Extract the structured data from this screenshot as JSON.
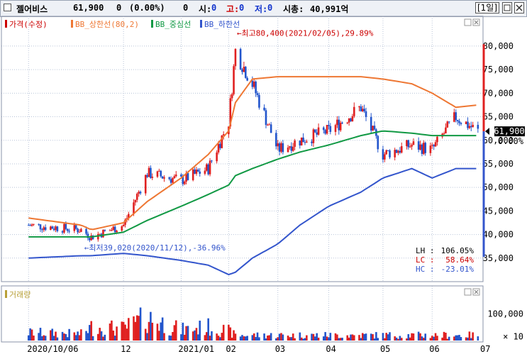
{
  "header": {
    "name": "젤어비스",
    "price": "61,900",
    "change": "0",
    "change_pct": "(0.00%)",
    "volume": "0",
    "open_label": "시:",
    "open_value": "0",
    "high_label": "고:",
    "high_value": "0",
    "low_label": "저:",
    "low_value": "0",
    "cap_label": "시총:",
    "cap_value": "40,991억",
    "period": "[1일]"
  },
  "chart_data": [
    {
      "type": "line",
      "title": "",
      "xlabel": "",
      "ylabel": "",
      "legend": [
        "가격(수정)",
        "BB_상한선(80,2)",
        "BB_중심선",
        "BB_하한선"
      ],
      "legend_colors": [
        "#cc0000",
        "#ee7733",
        "#119944",
        "#3355cc"
      ],
      "candle_colors": {
        "up": "#e02020",
        "down": "#2255cc"
      },
      "ylim": [
        30000,
        83000
      ],
      "yticks": [
        "80,000",
        "75,000",
        "70,000",
        "65,000",
        "60,000",
        "55,000",
        "50,000",
        "45,000",
        "40,000",
        "35,000"
      ],
      "ytick_values": [
        80000,
        75000,
        70000,
        65000,
        60000,
        55000,
        50000,
        45000,
        40000,
        35000
      ],
      "xticks": [
        "2020/10/06",
        "12",
        "2021/01",
        "02",
        "03",
        "04",
        "05",
        "06",
        "07"
      ],
      "x": [
        "2020-10-06",
        "2020-11-06",
        "2020-11-12",
        "2020-12-01",
        "2020-12-15",
        "2021-01-04",
        "2021-01-20",
        "2021-02-01",
        "2021-02-05",
        "2021-02-15",
        "2021-03-02",
        "2021-03-15",
        "2021-04-01",
        "2021-04-20",
        "2021-05-03",
        "2021-05-20",
        "2021-06-01",
        "2021-06-15",
        "2021-06-28"
      ],
      "series": [
        {
          "name": "가격(수정)",
          "values": [
            42000,
            41000,
            39500,
            42000,
            53000,
            51500,
            54000,
            64000,
            79000,
            72000,
            58000,
            60000,
            62000,
            67000,
            57000,
            59000,
            58000,
            65000,
            61900
          ]
        },
        {
          "name": "BB_상한선(80,2)",
          "values": [
            43500,
            42000,
            41000,
            42500,
            47000,
            52000,
            57000,
            62000,
            68000,
            73000,
            73500,
            73500,
            73500,
            73500,
            73000,
            72000,
            70000,
            67000,
            67500
          ]
        },
        {
          "name": "BB_중심선",
          "values": [
            39500,
            39500,
            39500,
            40500,
            43000,
            46000,
            48500,
            50500,
            52500,
            54000,
            56000,
            57500,
            59000,
            61000,
            62000,
            61500,
            61000,
            61000,
            61000
          ]
        },
        {
          "name": "BB_하한선",
          "values": [
            35000,
            35500,
            35500,
            36000,
            35500,
            34500,
            33500,
            31500,
            32000,
            35000,
            38000,
            42000,
            46000,
            49000,
            52000,
            54000,
            52000,
            54000,
            54000
          ]
        }
      ],
      "annotations": [
        {
          "text": "←최고80,400(2021/02/05),29.89%",
          "x": "2021-02-05",
          "y": 80400,
          "color": "#cc0000"
        },
        {
          "text": "←최저39,020(2020/11/12),-36.96%",
          "x": "2020-11-12",
          "y": 39020,
          "color": "#3355cc"
        }
      ],
      "current_price_label": "61,900",
      "current_price_value": 61900,
      "current_pct_label": "0.00%",
      "stats": [
        {
          "label": "LH :",
          "value": "106.05%",
          "color": "#000000"
        },
        {
          "label": "LC :",
          "value": "58.64%",
          "color": "#cc0000"
        },
        {
          "label": "HC :",
          "value": "-23.01%",
          "color": "#3355cc"
        }
      ]
    },
    {
      "type": "bar",
      "title": "",
      "legend": [
        "거래량"
      ],
      "legend_colors": [
        "#b8a038"
      ],
      "ylim": [
        0,
        160000
      ],
      "yticks": [
        "100,000",
        "× 10"
      ],
      "ytick_values": [
        100000,
        15000
      ],
      "x": [
        "2020-10",
        "2020-11",
        "2020-12",
        "2021-01",
        "2021-02",
        "2021-03",
        "2021-04",
        "2021-05",
        "2021-06"
      ],
      "values": [
        30000,
        25000,
        50000,
        45000,
        85000,
        40000,
        50000,
        35000,
        20000
      ]
    }
  ]
}
